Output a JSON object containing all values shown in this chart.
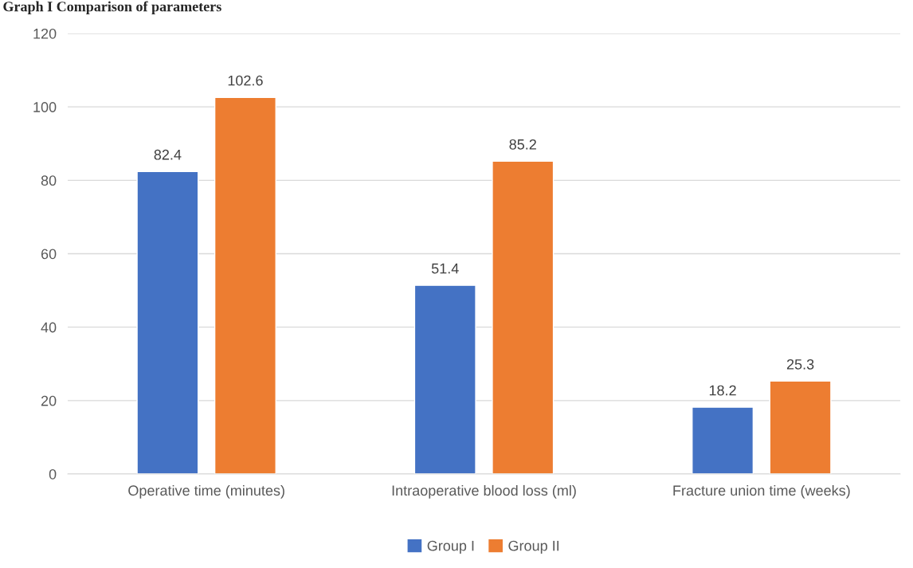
{
  "chart_data": {
    "type": "bar",
    "title": "Graph I Comparison of parameters",
    "categories": [
      "Operative time (minutes)",
      "Intraoperative blood loss (ml)",
      "Fracture union time (weeks)"
    ],
    "series": [
      {
        "name": "Group I",
        "color": "#4472c4",
        "values": [
          82.4,
          51.4,
          18.2
        ]
      },
      {
        "name": "Group II",
        "color": "#ed7d31",
        "values": [
          102.6,
          85.2,
          25.3
        ]
      }
    ],
    "ylim": [
      0,
      120
    ],
    "yticks": [
      0,
      20,
      40,
      60,
      80,
      100,
      120
    ],
    "grid": "y",
    "legend": "bottom",
    "data_labels": true
  }
}
